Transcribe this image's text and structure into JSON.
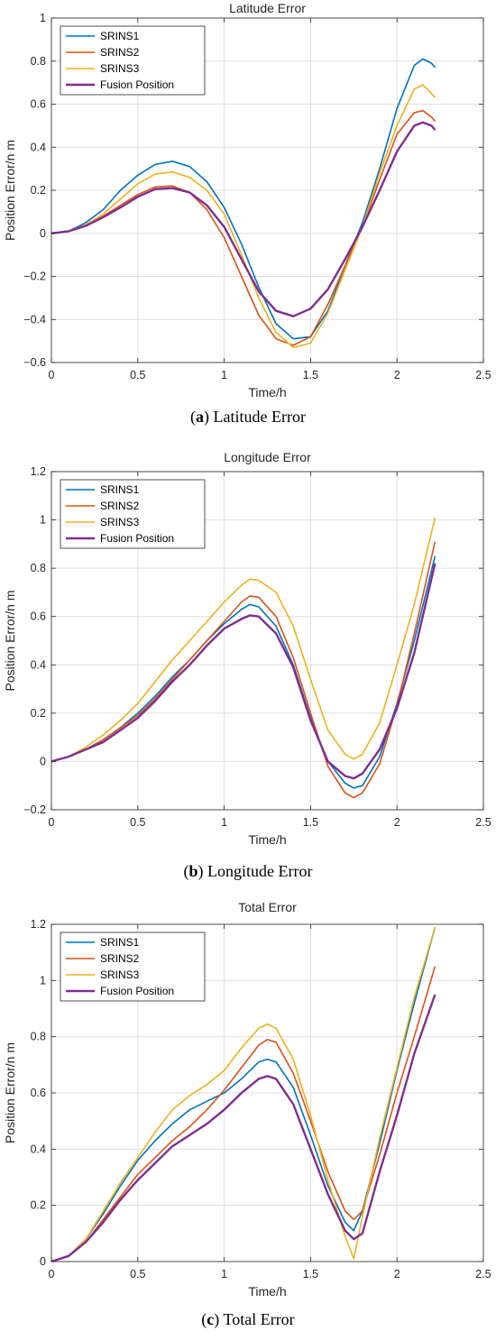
{
  "colors": {
    "SRINS1": "#0072BD",
    "SRINS2": "#D95319",
    "SRINS3": "#EDB120",
    "Fusion Position": "#7E2F8E"
  },
  "chart_data": [
    {
      "type": "line",
      "title": "Latitude Error",
      "xlabel": "Time/h",
      "ylabel": "Position Error/n m",
      "xlim": [
        0,
        2.5
      ],
      "ylim": [
        -0.6,
        1
      ],
      "xticks": [
        "0",
        "0.5",
        "1",
        "1.5",
        "2",
        "2.5"
      ],
      "yticks": [
        "−0.6",
        "−0.4",
        "−0.2",
        "0",
        "0.2",
        "0.4",
        "0.6",
        "0.8",
        "1"
      ],
      "yticks_values": [
        -0.6,
        -0.4,
        -0.2,
        0,
        0.2,
        0.4,
        0.6,
        0.8,
        1
      ],
      "grid": true,
      "legend": "top-left",
      "caption_letter": "a",
      "caption_text": "Latitude Error",
      "series": [
        {
          "name": "SRINS1",
          "x": [
            0,
            0.1,
            0.2,
            0.3,
            0.4,
            0.5,
            0.6,
            0.7,
            0.8,
            0.9,
            1.0,
            1.1,
            1.2,
            1.3,
            1.4,
            1.5,
            1.6,
            1.7,
            1.8,
            1.9,
            2.0,
            2.1,
            2.15,
            2.2,
            2.22
          ],
          "y": [
            0,
            0.01,
            0.05,
            0.11,
            0.2,
            0.27,
            0.32,
            0.335,
            0.31,
            0.24,
            0.12,
            -0.05,
            -0.25,
            -0.42,
            -0.49,
            -0.48,
            -0.36,
            -0.15,
            0.05,
            0.3,
            0.58,
            0.78,
            0.81,
            0.79,
            0.77
          ]
        },
        {
          "name": "SRINS2",
          "x": [
            0,
            0.1,
            0.2,
            0.3,
            0.4,
            0.5,
            0.6,
            0.7,
            0.8,
            0.9,
            1.0,
            1.1,
            1.2,
            1.3,
            1.4,
            1.5,
            1.6,
            1.7,
            1.8,
            1.9,
            2.0,
            2.1,
            2.15,
            2.2,
            2.22
          ],
          "y": [
            0,
            0.01,
            0.04,
            0.08,
            0.13,
            0.18,
            0.215,
            0.22,
            0.19,
            0.11,
            -0.02,
            -0.2,
            -0.38,
            -0.49,
            -0.52,
            -0.48,
            -0.33,
            -0.15,
            0.03,
            0.25,
            0.46,
            0.56,
            0.57,
            0.54,
            0.52
          ]
        },
        {
          "name": "SRINS3",
          "x": [
            0,
            0.1,
            0.2,
            0.3,
            0.4,
            0.5,
            0.6,
            0.7,
            0.8,
            0.9,
            1.0,
            1.1,
            1.2,
            1.3,
            1.4,
            1.5,
            1.6,
            1.7,
            1.8,
            1.9,
            2.0,
            2.1,
            2.15,
            2.2,
            2.22
          ],
          "y": [
            0,
            0.01,
            0.04,
            0.09,
            0.16,
            0.23,
            0.275,
            0.285,
            0.26,
            0.2,
            0.09,
            -0.1,
            -0.3,
            -0.46,
            -0.53,
            -0.51,
            -0.37,
            -0.17,
            0.03,
            0.28,
            0.5,
            0.67,
            0.69,
            0.65,
            0.63
          ]
        },
        {
          "name": "Fusion Position",
          "x": [
            0,
            0.1,
            0.2,
            0.3,
            0.4,
            0.5,
            0.6,
            0.7,
            0.8,
            0.9,
            1.0,
            1.1,
            1.2,
            1.3,
            1.4,
            1.5,
            1.6,
            1.7,
            1.8,
            1.9,
            2.0,
            2.1,
            2.15,
            2.2,
            2.22
          ],
          "y": [
            0,
            0.01,
            0.035,
            0.075,
            0.12,
            0.17,
            0.205,
            0.21,
            0.19,
            0.13,
            0.03,
            -0.12,
            -0.27,
            -0.36,
            -0.385,
            -0.35,
            -0.26,
            -0.12,
            0.03,
            0.2,
            0.38,
            0.5,
            0.515,
            0.5,
            0.48
          ]
        }
      ]
    },
    {
      "type": "line",
      "title": "Longitude Error",
      "xlabel": "Time/h",
      "ylabel": "Position Error/n m",
      "xlim": [
        0,
        2.5
      ],
      "ylim": [
        -0.2,
        1.2
      ],
      "xticks": [
        "0",
        "0.5",
        "1",
        "1.5",
        "2",
        "2.5"
      ],
      "yticks": [
        "−0.2",
        "0",
        "0.2",
        "0.4",
        "0.6",
        "0.8",
        "1",
        "1.2"
      ],
      "yticks_values": [
        -0.2,
        0,
        0.2,
        0.4,
        0.6,
        0.8,
        1,
        1.2
      ],
      "grid": true,
      "legend": "top-left",
      "caption_letter": "b",
      "caption_text": "Longitude Error",
      "series": [
        {
          "name": "SRINS1",
          "x": [
            0,
            0.1,
            0.2,
            0.3,
            0.4,
            0.5,
            0.6,
            0.7,
            0.8,
            0.9,
            1.0,
            1.1,
            1.15,
            1.2,
            1.3,
            1.4,
            1.5,
            1.6,
            1.7,
            1.75,
            1.8,
            1.9,
            2.0,
            2.1,
            2.22
          ],
          "y": [
            0,
            0.02,
            0.05,
            0.09,
            0.14,
            0.2,
            0.27,
            0.35,
            0.42,
            0.5,
            0.57,
            0.63,
            0.65,
            0.64,
            0.56,
            0.4,
            0.18,
            0.0,
            -0.09,
            -0.11,
            -0.1,
            0.02,
            0.24,
            0.5,
            0.85
          ]
        },
        {
          "name": "SRINS2",
          "x": [
            0,
            0.1,
            0.2,
            0.3,
            0.4,
            0.5,
            0.6,
            0.7,
            0.8,
            0.9,
            1.0,
            1.1,
            1.15,
            1.2,
            1.3,
            1.4,
            1.5,
            1.6,
            1.7,
            1.75,
            1.8,
            1.9,
            2.0,
            2.1,
            2.22
          ],
          "y": [
            0,
            0.02,
            0.05,
            0.09,
            0.14,
            0.19,
            0.26,
            0.34,
            0.42,
            0.5,
            0.58,
            0.66,
            0.685,
            0.68,
            0.6,
            0.43,
            0.2,
            -0.02,
            -0.13,
            -0.15,
            -0.13,
            -0.01,
            0.23,
            0.53,
            0.91
          ]
        },
        {
          "name": "SRINS3",
          "x": [
            0,
            0.1,
            0.2,
            0.3,
            0.4,
            0.5,
            0.6,
            0.7,
            0.8,
            0.9,
            1.0,
            1.1,
            1.15,
            1.2,
            1.3,
            1.4,
            1.5,
            1.6,
            1.7,
            1.75,
            1.8,
            1.9,
            2.0,
            2.1,
            2.22
          ],
          "y": [
            0,
            0.02,
            0.06,
            0.11,
            0.17,
            0.24,
            0.33,
            0.42,
            0.5,
            0.58,
            0.66,
            0.73,
            0.755,
            0.75,
            0.7,
            0.56,
            0.34,
            0.13,
            0.03,
            0.01,
            0.03,
            0.16,
            0.4,
            0.65,
            1.01
          ]
        },
        {
          "name": "Fusion Position",
          "x": [
            0,
            0.1,
            0.2,
            0.3,
            0.4,
            0.5,
            0.6,
            0.7,
            0.8,
            0.9,
            1.0,
            1.1,
            1.15,
            1.2,
            1.3,
            1.4,
            1.5,
            1.6,
            1.7,
            1.75,
            1.8,
            1.9,
            2.0,
            2.1,
            2.22
          ],
          "y": [
            0,
            0.02,
            0.05,
            0.08,
            0.13,
            0.18,
            0.25,
            0.33,
            0.4,
            0.48,
            0.55,
            0.59,
            0.605,
            0.6,
            0.53,
            0.39,
            0.17,
            0.0,
            -0.06,
            -0.07,
            -0.05,
            0.05,
            0.22,
            0.45,
            0.82
          ]
        }
      ]
    },
    {
      "type": "line",
      "title": "Total Error",
      "xlabel": "Time/h",
      "ylabel": "Position Error/n m",
      "xlim": [
        0,
        2.5
      ],
      "ylim": [
        0,
        1.2
      ],
      "xticks": [
        "0",
        "0.5",
        "1",
        "1.5",
        "2",
        "2.5"
      ],
      "yticks": [
        "0",
        "0.2",
        "0.4",
        "0.6",
        "0.8",
        "1",
        "1.2"
      ],
      "yticks_values": [
        0,
        0.2,
        0.4,
        0.6,
        0.8,
        1,
        1.2
      ],
      "grid": true,
      "legend": "top-left",
      "caption_letter": "c",
      "caption_text": "Total Error",
      "series": [
        {
          "name": "SRINS1",
          "x": [
            0,
            0.1,
            0.2,
            0.3,
            0.4,
            0.5,
            0.6,
            0.7,
            0.8,
            0.9,
            1.0,
            1.1,
            1.2,
            1.25,
            1.3,
            1.4,
            1.5,
            1.6,
            1.7,
            1.75,
            1.8,
            1.9,
            2.0,
            2.1,
            2.22
          ],
          "y": [
            0,
            0.02,
            0.08,
            0.17,
            0.27,
            0.36,
            0.43,
            0.49,
            0.54,
            0.57,
            0.6,
            0.65,
            0.71,
            0.72,
            0.71,
            0.62,
            0.45,
            0.27,
            0.14,
            0.11,
            0.18,
            0.42,
            0.68,
            0.92,
            1.19
          ]
        },
        {
          "name": "SRINS2",
          "x": [
            0,
            0.1,
            0.2,
            0.3,
            0.4,
            0.5,
            0.6,
            0.7,
            0.8,
            0.9,
            1.0,
            1.1,
            1.2,
            1.25,
            1.3,
            1.4,
            1.5,
            1.6,
            1.7,
            1.75,
            1.8,
            1.9,
            2.0,
            2.1,
            2.22
          ],
          "y": [
            0,
            0.02,
            0.07,
            0.15,
            0.23,
            0.31,
            0.37,
            0.43,
            0.48,
            0.54,
            0.61,
            0.69,
            0.77,
            0.79,
            0.78,
            0.67,
            0.5,
            0.32,
            0.18,
            0.15,
            0.18,
            0.38,
            0.6,
            0.8,
            1.05
          ]
        },
        {
          "name": "SRINS3",
          "x": [
            0,
            0.1,
            0.2,
            0.3,
            0.4,
            0.5,
            0.6,
            0.7,
            0.8,
            0.9,
            1.0,
            1.1,
            1.2,
            1.25,
            1.3,
            1.4,
            1.5,
            1.6,
            1.7,
            1.75,
            1.8,
            1.9,
            2.0,
            2.1,
            2.22
          ],
          "y": [
            0,
            0.02,
            0.08,
            0.18,
            0.28,
            0.37,
            0.46,
            0.54,
            0.59,
            0.63,
            0.68,
            0.76,
            0.83,
            0.845,
            0.83,
            0.72,
            0.52,
            0.29,
            0.09,
            0.01,
            0.16,
            0.44,
            0.69,
            0.94,
            1.19
          ]
        },
        {
          "name": "Fusion Position",
          "x": [
            0,
            0.1,
            0.2,
            0.3,
            0.4,
            0.5,
            0.6,
            0.7,
            0.8,
            0.9,
            1.0,
            1.1,
            1.2,
            1.25,
            1.3,
            1.4,
            1.5,
            1.6,
            1.7,
            1.75,
            1.8,
            1.9,
            2.0,
            2.1,
            2.22
          ],
          "y": [
            0,
            0.02,
            0.07,
            0.14,
            0.22,
            0.29,
            0.35,
            0.41,
            0.45,
            0.49,
            0.54,
            0.6,
            0.65,
            0.66,
            0.65,
            0.56,
            0.4,
            0.24,
            0.11,
            0.08,
            0.1,
            0.32,
            0.52,
            0.74,
            0.95
          ]
        }
      ]
    }
  ]
}
